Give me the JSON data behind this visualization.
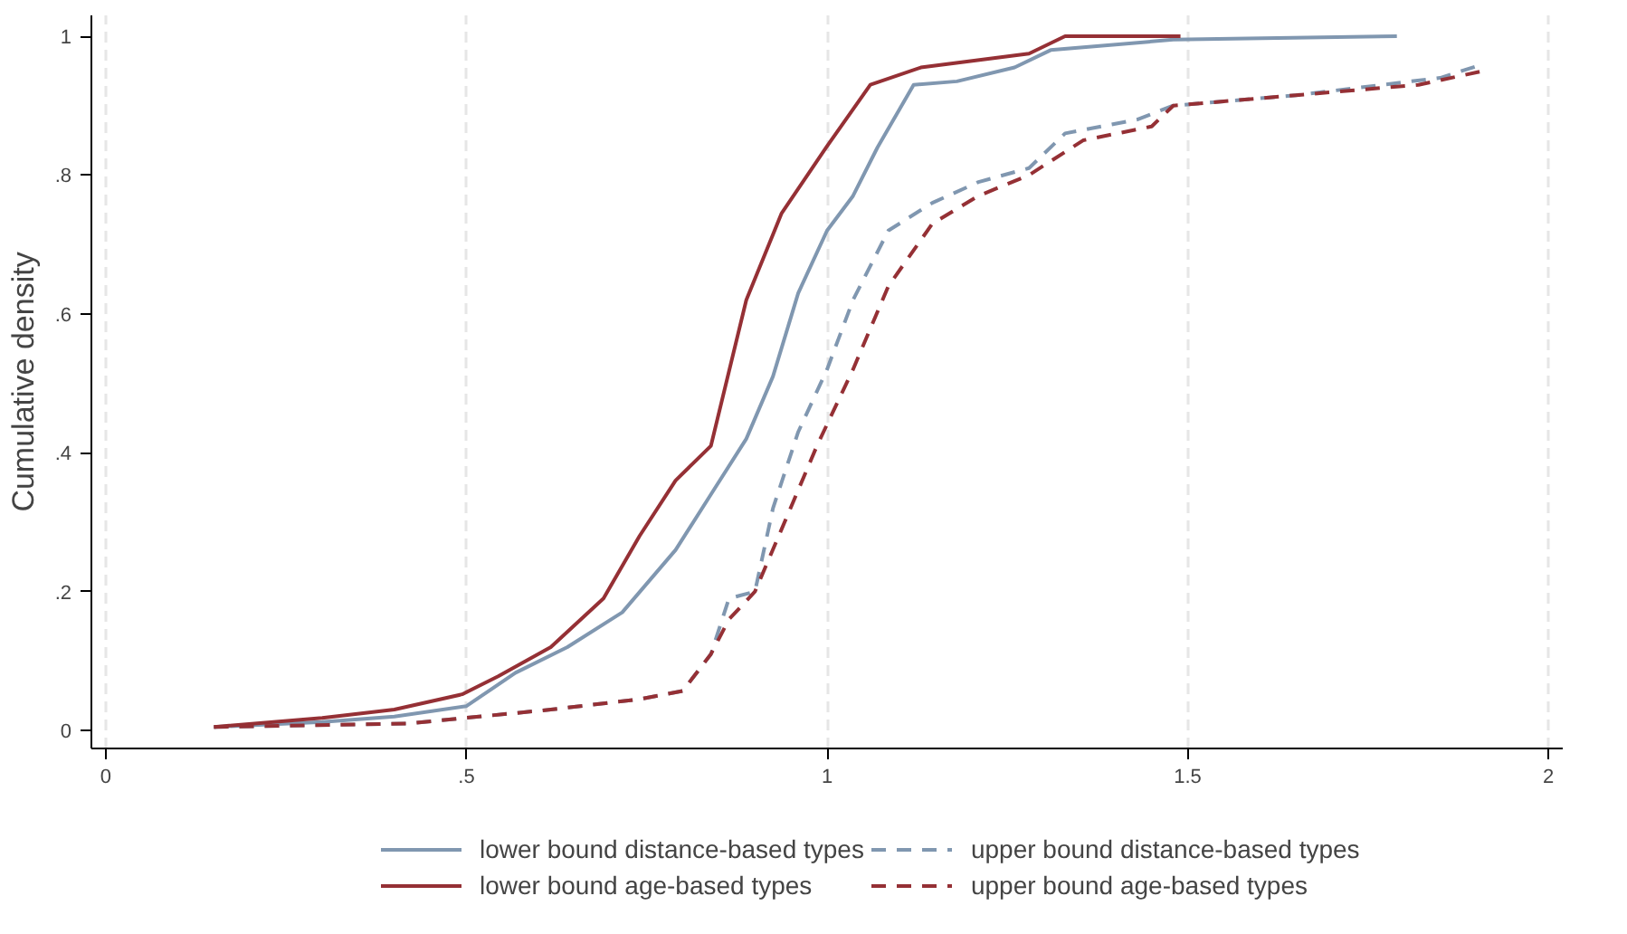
{
  "chart_data": {
    "type": "line",
    "ylabel": "Cumulative density",
    "xlim": [
      -0.02,
      2.02
    ],
    "ylim": [
      -0.026,
      1.03
    ],
    "xticks": [
      {
        "value": 0,
        "label": "0"
      },
      {
        "value": 0.5,
        "label": ".5"
      },
      {
        "value": 1,
        "label": "1"
      },
      {
        "value": 1.5,
        "label": "1.5"
      },
      {
        "value": 2,
        "label": "2"
      }
    ],
    "yticks": [
      {
        "value": 0,
        "label": "0"
      },
      {
        "value": 0.2,
        "label": ".2"
      },
      {
        "value": 0.4,
        "label": ".4"
      },
      {
        "value": 0.6,
        "label": ".6"
      },
      {
        "value": 0.8,
        "label": ".8"
      },
      {
        "value": 1,
        "label": "1"
      }
    ],
    "grid": "x",
    "legend": "bottom",
    "series": [
      {
        "name": "lower bound distance-based types",
        "color": "#8097b0",
        "line_style": "solid",
        "x": [
          0.15,
          0.3,
          0.4,
          0.5,
          0.568,
          0.64,
          0.716,
          0.79,
          0.839,
          0.888,
          0.925,
          0.96,
          1.0,
          1.036,
          1.07,
          1.12,
          1.18,
          1.26,
          1.31,
          1.48,
          1.79
        ],
        "values": [
          0.005,
          0.012,
          0.02,
          0.035,
          0.083,
          0.12,
          0.17,
          0.26,
          0.34,
          0.42,
          0.51,
          0.63,
          0.72,
          0.77,
          0.84,
          0.93,
          0.935,
          0.955,
          0.98,
          0.995,
          1.0
        ]
      },
      {
        "name": "upper bound distance-based types",
        "color": "#8097b0",
        "line_style": "dashed",
        "x": [
          0.15,
          0.42,
          0.617,
          0.74,
          0.8,
          0.839,
          0.864,
          0.9,
          0.925,
          0.96,
          1.0,
          1.036,
          1.085,
          1.146,
          1.21,
          1.28,
          1.33,
          1.43,
          1.48,
          1.65,
          1.85,
          1.91
        ],
        "values": [
          0.005,
          0.01,
          0.03,
          0.045,
          0.057,
          0.11,
          0.19,
          0.2,
          0.32,
          0.43,
          0.52,
          0.62,
          0.72,
          0.76,
          0.79,
          0.81,
          0.86,
          0.88,
          0.9,
          0.915,
          0.94,
          0.96
        ]
      },
      {
        "name": "lower bound age-based types",
        "color": "#953035",
        "line_style": "solid",
        "x": [
          0.15,
          0.3,
          0.4,
          0.494,
          0.544,
          0.617,
          0.69,
          0.74,
          0.79,
          0.839,
          0.888,
          0.937,
          0.999,
          1.06,
          1.13,
          1.28,
          1.33,
          1.49
        ],
        "values": [
          0.005,
          0.018,
          0.03,
          0.052,
          0.078,
          0.12,
          0.19,
          0.28,
          0.36,
          0.41,
          0.62,
          0.745,
          0.84,
          0.93,
          0.955,
          0.975,
          1.0,
          1.0
        ]
      },
      {
        "name": "upper bound age-based types",
        "color": "#953035",
        "line_style": "dashed",
        "x": [
          0.15,
          0.42,
          0.617,
          0.74,
          0.8,
          0.839,
          0.864,
          0.9,
          0.937,
          0.986,
          1.036,
          1.085,
          1.146,
          1.21,
          1.28,
          1.355,
          1.45,
          1.48,
          1.65,
          1.82,
          1.91
        ],
        "values": [
          0.005,
          0.01,
          0.03,
          0.045,
          0.057,
          0.11,
          0.16,
          0.2,
          0.29,
          0.41,
          0.52,
          0.64,
          0.73,
          0.77,
          0.8,
          0.85,
          0.87,
          0.9,
          0.915,
          0.93,
          0.95
        ]
      }
    ]
  }
}
